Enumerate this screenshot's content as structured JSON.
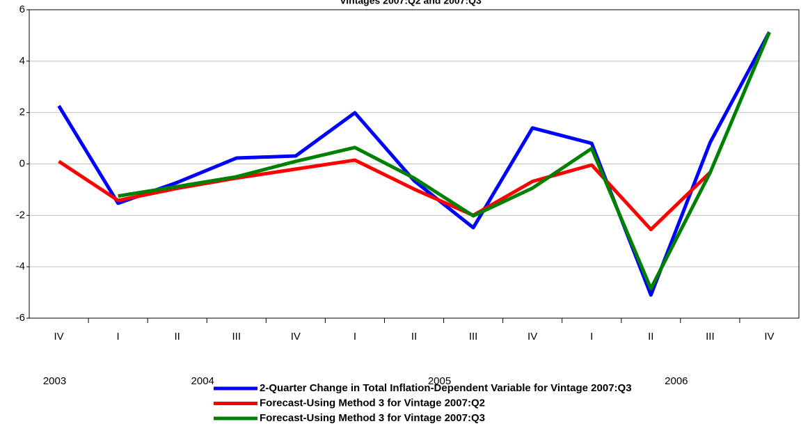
{
  "chart_data": {
    "type": "line",
    "title": "Vintages 2007:Q2 and 2007:Q3",
    "categories": [
      "IV",
      "I",
      "II",
      "III",
      "IV",
      "I",
      "II",
      "III",
      "IV",
      "I",
      "II",
      "III",
      "IV"
    ],
    "year_labels": [
      "2003",
      "2004",
      "2005",
      "2006"
    ],
    "series": [
      {
        "name": "2-Quarter Change in Total Inflation-Dependent Variable for Vintage 2007:Q3",
        "color": "#0000ff",
        "values": [
          2.26,
          -1.53,
          -0.72,
          0.23,
          0.31,
          1.99,
          -0.65,
          -2.48,
          1.4,
          0.8,
          -5.1,
          0.83,
          5.13
        ]
      },
      {
        "name": "Forecast-Using Method 3 for Vintage 2007:Q2",
        "color": "#ff0000",
        "values": [
          0.1,
          -1.42,
          -0.95,
          -0.55,
          -0.2,
          0.15,
          -0.98,
          -2.0,
          -0.68,
          -0.04,
          -2.55,
          -0.33,
          null
        ]
      },
      {
        "name": "Forecast-Using Method 3 for Vintage 2007:Q3",
        "color": "#008000",
        "values": [
          null,
          -1.25,
          -0.88,
          -0.5,
          0.1,
          0.64,
          -0.55,
          -2.02,
          -0.94,
          0.6,
          -4.85,
          -0.34,
          5.12
        ]
      }
    ],
    "ylim": [
      -6,
      6
    ],
    "yticks": [
      -6,
      -4,
      -2,
      0,
      2,
      4,
      6
    ],
    "grid": true
  }
}
